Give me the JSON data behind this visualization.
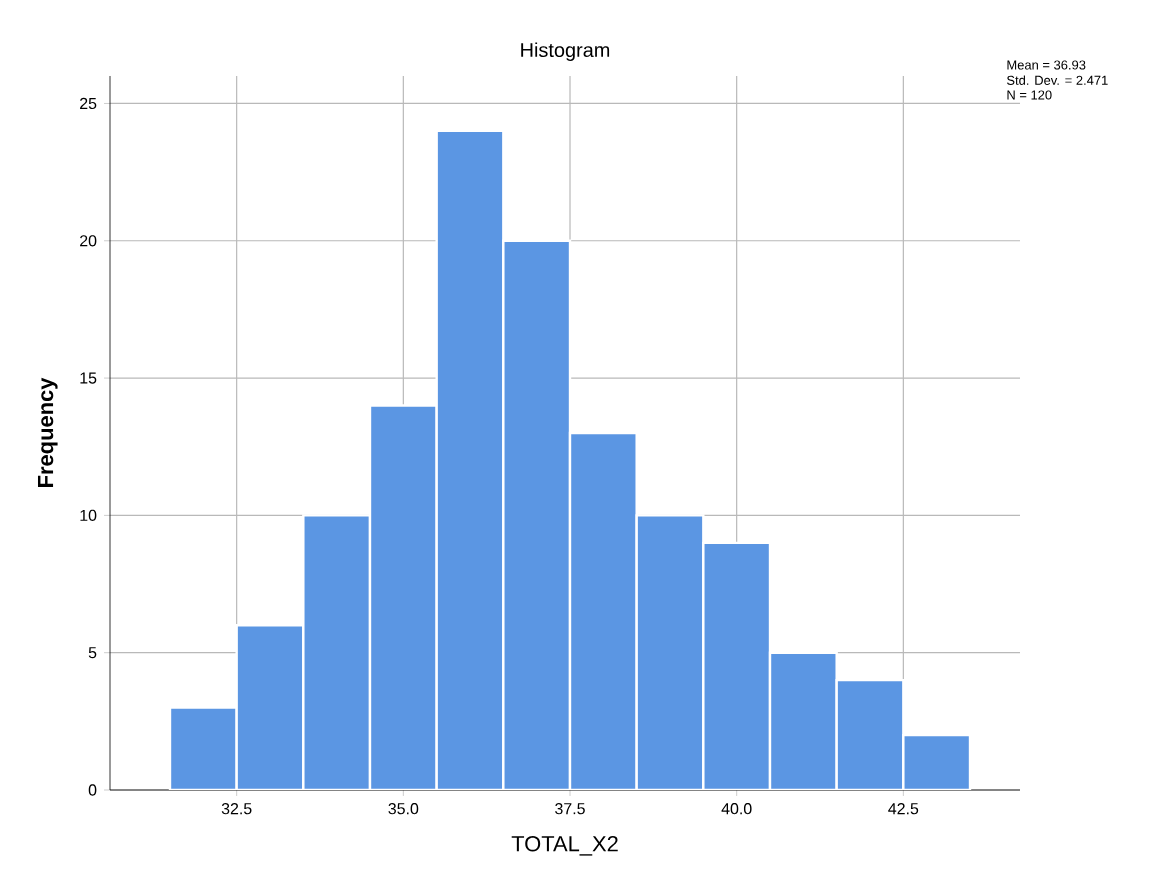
{
  "chart_data": {
    "type": "histogram",
    "title": "Histogram",
    "xlabel": "TOTAL_X2",
    "ylabel": "Frequency",
    "bins": [
      31.5,
      32.5,
      33.5,
      34.5,
      35.5,
      36.5,
      37.5,
      38.5,
      39.5,
      40.5,
      41.5,
      42.5,
      43.5
    ],
    "values": [
      3,
      6,
      10,
      14,
      24,
      20,
      13,
      10,
      9,
      5,
      4,
      2
    ],
    "color": "#5b96e3",
    "xlim": [
      30.6,
      44.25
    ],
    "ylim": [
      0,
      26
    ],
    "xticks": [
      32.5,
      {
        "value": 35,
        "label": "35.0"
      },
      37.5,
      {
        "value": 40,
        "label": "40.0"
      },
      42.5
    ],
    "yticks": [
      0,
      5,
      10,
      15,
      20,
      25
    ],
    "grid": true,
    "annotations": [
      "Mean = 36.93",
      "Std. Dev. = 2.471",
      "N = 120"
    ]
  }
}
